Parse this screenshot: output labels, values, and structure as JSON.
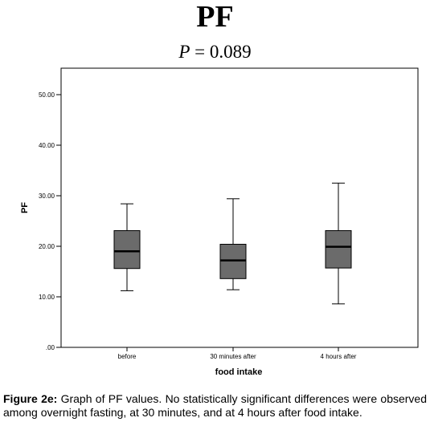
{
  "title": "PF",
  "subtitle": {
    "symbol": "P",
    "rest": " = 0.089"
  },
  "caption": {
    "label": "Figure 2e:",
    "text": " Graph of PF values. No statistically significant differences were observed among overnight fasting, at 30 minutes, and at 4 hours after food intake."
  },
  "colors": {
    "box_fill": "#6b6b6b",
    "plot_border": "#000000",
    "median": "#000000"
  },
  "chart_data": {
    "type": "boxplot",
    "xlabel": "food intake",
    "ylabel": "PF",
    "ylim": [
      0,
      55
    ],
    "yticks": [
      0,
      10,
      20,
      30,
      40,
      50
    ],
    "ytick_labels": [
      ".00",
      "10.00",
      "20.00",
      "30.00",
      "40.00",
      "50.00"
    ],
    "categories": [
      "before",
      "30 minutes after",
      "4 hours after"
    ],
    "boxes": [
      {
        "category": "before",
        "min": 11.2,
        "q1": 15.6,
        "median": 19.0,
        "q3": 23.1,
        "max": 28.4
      },
      {
        "category": "30 minutes after",
        "min": 11.4,
        "q1": 13.6,
        "median": 17.2,
        "q3": 20.4,
        "max": 29.4
      },
      {
        "category": "4 hours after",
        "min": 8.6,
        "q1": 15.7,
        "median": 19.9,
        "q3": 23.1,
        "max": 32.5
      }
    ],
    "grid": false,
    "legend": "none"
  }
}
